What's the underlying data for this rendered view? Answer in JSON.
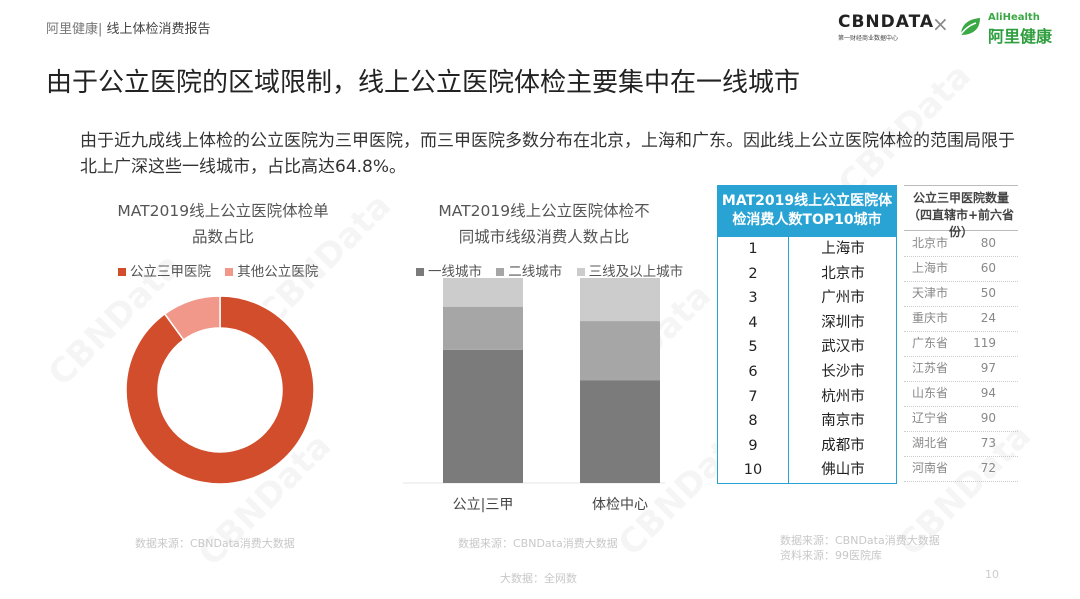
{
  "header": {
    "brand": "阿里健康",
    "separator": "|",
    "report": "线上体检消费报告",
    "logo_cbn": "CBNDATA",
    "logo_cbn_sub": "第一财经商业数据中心",
    "logo_x": "×",
    "logo_ali_en": "AliHealth",
    "logo_ali_cn": "阿里健康"
  },
  "title": "由于公立医院的区域限制，线上公立医院体检主要集中在一线城市",
  "description": "由于近九成线上体检的公立医院为三甲医院，而三甲医院多数分布在北京，上海和广东。因此线上公立医院体检的范围局限于北上广深这些一线城市，占比高达64.8%。",
  "watermark": "CBNData",
  "colors": {
    "accent_blue": "#29a3d4",
    "red": "#d24d2c",
    "pink": "#f2988a",
    "gray_dark": "#7b7b7b",
    "gray_mid": "#a6a6a6",
    "gray_light": "#cccccc"
  },
  "chart_data": [
    {
      "type": "pie",
      "title_line1": "MAT2019线上公立医院体检单",
      "title_line2": "品数占比",
      "legend_position": "top",
      "categories": [
        "公立三甲医院",
        "其他公立医院"
      ],
      "values": [
        90,
        10
      ],
      "colors": [
        "#d24d2c",
        "#f2988a"
      ],
      "donut": true
    },
    {
      "type": "bar",
      "stacked": true,
      "percent": true,
      "title_line1": "MAT2019线上公立医院体检不",
      "title_line2": "同城市线级消费人数占比",
      "legend_position": "top",
      "categories": [
        "公立|三甲",
        "体检中心"
      ],
      "series": [
        {
          "name": "一线城市",
          "values": [
            65,
            50
          ],
          "color": "#7b7b7b"
        },
        {
          "name": "二线城市",
          "values": [
            21,
            29
          ],
          "color": "#a6a6a6"
        },
        {
          "name": "三线及以上城市",
          "values": [
            14,
            21
          ],
          "color": "#cccccc"
        }
      ],
      "ylim": [
        0,
        100
      ],
      "grid": false
    },
    {
      "type": "table",
      "header": [
        "MAT2019线上公立医院体",
        "检消费人数TOP10城市"
      ],
      "rows": [
        {
          "rank": "1",
          "city": "上海市"
        },
        {
          "rank": "2",
          "city": "北京市"
        },
        {
          "rank": "3",
          "city": "广州市"
        },
        {
          "rank": "4",
          "city": "深圳市"
        },
        {
          "rank": "5",
          "city": "武汉市"
        },
        {
          "rank": "6",
          "city": "长沙市"
        },
        {
          "rank": "7",
          "city": "杭州市"
        },
        {
          "rank": "8",
          "city": "南京市"
        },
        {
          "rank": "9",
          "city": "成都市"
        },
        {
          "rank": "10",
          "city": "佛山市"
        }
      ]
    },
    {
      "type": "table",
      "header": [
        "公立三甲医院数量",
        "（四直辖市+前六省份）"
      ],
      "rows": [
        {
          "region": "北京市",
          "count": "80"
        },
        {
          "region": "上海市",
          "count": "60"
        },
        {
          "region": "天津市",
          "count": "50"
        },
        {
          "region": "重庆市",
          "count": "24"
        },
        {
          "region": "广东省",
          "count": "119"
        },
        {
          "region": "江苏省",
          "count": "97"
        },
        {
          "region": "山东省",
          "count": "94"
        },
        {
          "region": "辽宁省",
          "count": "90"
        },
        {
          "region": "湖北省",
          "count": "73"
        },
        {
          "region": "河南省",
          "count": "72"
        }
      ]
    }
  ],
  "sources": {
    "s1": "数据来源：CBNData消费大数据",
    "s2": "数据来源：CBNData消费大数据",
    "s3": "大数据：全网数",
    "s4_line1": "数据来源：CBNData消费大数据",
    "s4_line2": "资料来源：99医院库"
  },
  "page_number": "10"
}
